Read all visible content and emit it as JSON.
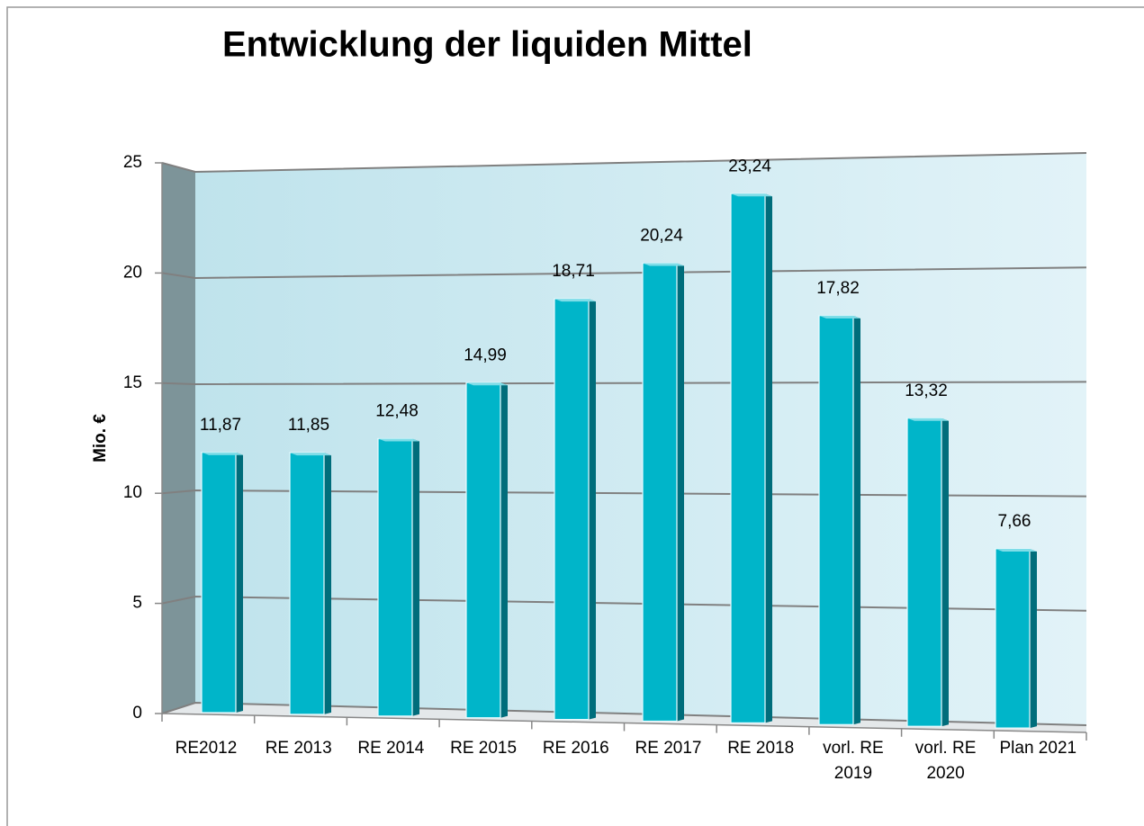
{
  "chart_data": {
    "type": "bar3d",
    "title": "Entwicklung der liquiden Mittel",
    "y_label": "Mio. €",
    "categories": [
      "RE2012",
      "RE 2013",
      "RE 2014",
      "RE 2015",
      "RE 2016",
      "RE 2017",
      "RE 2018",
      "vorl. RE 2019",
      "vorl. RE 2020",
      "Plan 2021"
    ],
    "values": [
      11.87,
      11.85,
      12.48,
      14.99,
      18.71,
      20.24,
      23.24,
      17.82,
      13.32,
      7.66
    ],
    "value_labels": [
      "11,87",
      "11,85",
      "12,48",
      "14,99",
      "18,71",
      "20,24",
      "23,24",
      "17,82",
      "13,32",
      "7,66"
    ],
    "color": "#00b5c9",
    "ylim": [
      0,
      25
    ],
    "yticks": [
      0,
      5,
      10,
      15,
      20,
      25
    ],
    "grid": true
  }
}
